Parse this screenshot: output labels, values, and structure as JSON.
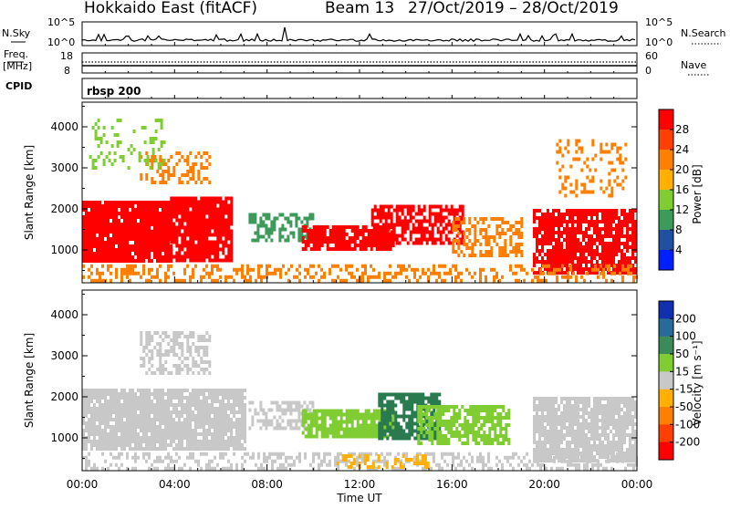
{
  "header": {
    "title_left": "Hokkaido East (fitACF)",
    "title_beam": "Beam 13",
    "title_dates": "27/Oct/2019 – 28/Oct/2019"
  },
  "noise_panel": {
    "left_label": "N.Sky",
    "left_ticks": [
      "10^5",
      "10^0"
    ],
    "right_ticks": [
      "10^5",
      "10^0"
    ],
    "right_label": "N.Search"
  },
  "freq_panel": {
    "left_label_top": "Freq.",
    "left_label_unit": "[MHz]",
    "left_ticks": [
      "18",
      "8"
    ],
    "right_ticks": [
      "60",
      "0"
    ],
    "right_label": "Nave"
  },
  "cpid_panel": {
    "left_label": "CPID",
    "text": "rbsp 200"
  },
  "time_axis": {
    "labels": [
      "00:00",
      "04:00",
      "08:00",
      "12:00",
      "16:00",
      "20:00",
      "00:00"
    ],
    "title": "Time UT"
  },
  "colors": {
    "red": "#ff0000",
    "orange": "#ff7f00",
    "yellow": "#ffb000",
    "lgreen": "#7fcc33",
    "green": "#3c9a5a",
    "dgreen": "#2a7a50",
    "blue": "#1040d0",
    "grey": "#c8c8c8"
  },
  "chart_data": [
    {
      "type": "heatmap",
      "name": "power",
      "ylabel": "Slant Range [km]",
      "yticks": [
        1000,
        2000,
        3000,
        4000
      ],
      "ylim": [
        200,
        4600
      ],
      "xlim_hours": [
        0,
        24
      ],
      "colorbar": {
        "label": "Power [dB]",
        "ticks": [
          "28",
          "24",
          "20",
          "16",
          "12",
          "8",
          "4"
        ],
        "bins": [
          "#ff0000",
          "#ff4000",
          "#ff7f00",
          "#ffb000",
          "#7fcc33",
          "#3c9a5a",
          "#2050a0",
          "#0020ff"
        ]
      },
      "regions": [
        {
          "t": [
            0,
            3.8
          ],
          "r": [
            700,
            2200
          ],
          "color": "red",
          "density": 0.95
        },
        {
          "t": [
            3.8,
            6.5
          ],
          "r": [
            700,
            2300
          ],
          "color": "red",
          "density": 0.9
        },
        {
          "t": [
            2.5,
            5.5
          ],
          "r": [
            2600,
            3400
          ],
          "color": "orange",
          "density": 0.4
        },
        {
          "t": [
            0.3,
            3.5
          ],
          "r": [
            3000,
            4200
          ],
          "color": "lgreen",
          "density": 0.18
        },
        {
          "t": [
            7.2,
            10
          ],
          "r": [
            1200,
            1900
          ],
          "color": "green",
          "density": 0.5
        },
        {
          "t": [
            9.5,
            13.5
          ],
          "r": [
            1000,
            1600
          ],
          "color": "red",
          "density": 0.85
        },
        {
          "t": [
            12.5,
            16.5
          ],
          "r": [
            1200,
            2100
          ],
          "color": "red",
          "density": 0.75
        },
        {
          "t": [
            16,
            19
          ],
          "r": [
            900,
            1800
          ],
          "color": "orange",
          "density": 0.55
        },
        {
          "t": [
            19.5,
            24
          ],
          "r": [
            400,
            2000
          ],
          "color": "red",
          "density": 0.85
        },
        {
          "t": [
            20.5,
            23.5
          ],
          "r": [
            2300,
            3700
          ],
          "color": "orange",
          "density": 0.25
        },
        {
          "t": [
            0,
            24
          ],
          "r": [
            250,
            650
          ],
          "color": "orange",
          "density": 0.35
        }
      ]
    },
    {
      "type": "heatmap",
      "name": "velocity",
      "ylabel": "Slant Range [km]",
      "yticks": [
        1000,
        2000,
        3000,
        4000
      ],
      "ylim": [
        200,
        4600
      ],
      "xlim_hours": [
        0,
        24
      ],
      "colorbar": {
        "label": "Velocity [m s⁻¹]",
        "ticks": [
          "200",
          "100",
          "50",
          "15",
          "-15",
          "-50",
          "-100",
          "-200"
        ],
        "bins": [
          "#1030b0",
          "#2a6a9a",
          "#3c8a5a",
          "#7fcc33",
          "#c8c8c8",
          "#ffb000",
          "#ff7f00",
          "#ff4000",
          "#ff0000"
        ]
      },
      "regions": [
        {
          "t": [
            0,
            7
          ],
          "r": [
            700,
            2200
          ],
          "color": "grey",
          "density": 0.92
        },
        {
          "t": [
            2.5,
            5.5
          ],
          "r": [
            2600,
            3600
          ],
          "color": "grey",
          "density": 0.5
        },
        {
          "t": [
            7.2,
            10
          ],
          "r": [
            1200,
            1900
          ],
          "color": "grey",
          "density": 0.55
        },
        {
          "t": [
            9.5,
            13.5
          ],
          "r": [
            1000,
            1700
          ],
          "color": "lgreen",
          "density": 0.85
        },
        {
          "t": [
            12.8,
            15.5
          ],
          "r": [
            1000,
            2100
          ],
          "color": "dgreen",
          "density": 0.75
        },
        {
          "t": [
            14.5,
            18.5
          ],
          "r": [
            900,
            1800
          ],
          "color": "lgreen",
          "density": 0.7
        },
        {
          "t": [
            19.5,
            24
          ],
          "r": [
            400,
            2000
          ],
          "color": "grey",
          "density": 0.88
        },
        {
          "t": [
            0,
            24
          ],
          "r": [
            250,
            650
          ],
          "color": "grey",
          "density": 0.4
        },
        {
          "t": [
            11,
            15
          ],
          "r": [
            250,
            600
          ],
          "color": "yellow",
          "density": 0.4
        }
      ]
    }
  ]
}
